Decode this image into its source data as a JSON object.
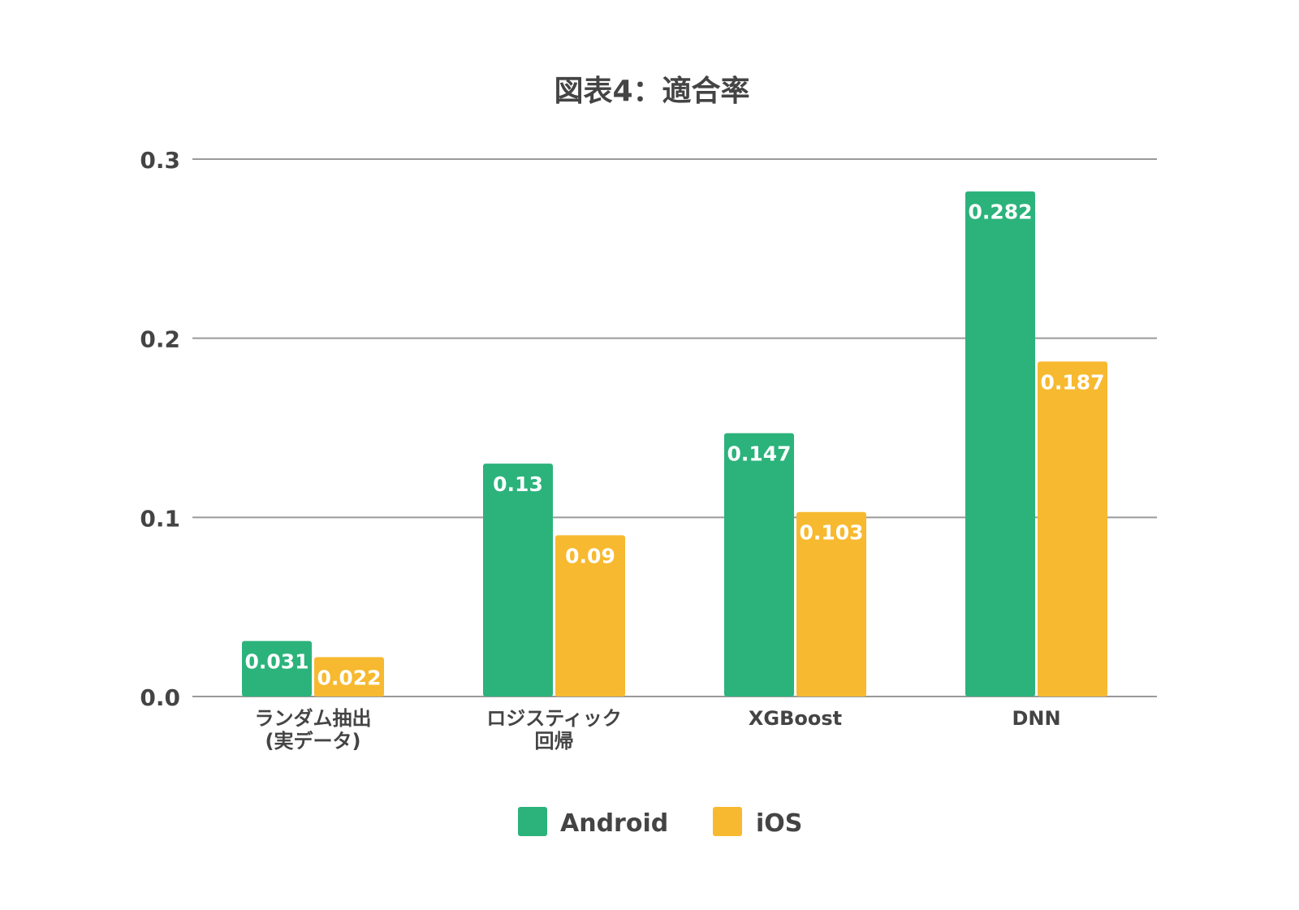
{
  "chart_data": {
    "type": "bar",
    "title": "図表4：適合率",
    "categories": [
      [
        "ランダム抽出",
        "(実データ)"
      ],
      [
        "ロジスティック",
        "回帰"
      ],
      [
        "XGBoost"
      ],
      [
        "DNN"
      ]
    ],
    "series": [
      {
        "name": "Android",
        "color": "#2bb37b",
        "values": [
          0.031,
          0.13,
          0.147,
          0.282
        ]
      },
      {
        "name": "iOS",
        "color": "#f7b92f",
        "values": [
          0.022,
          0.09,
          0.103,
          0.187
        ]
      }
    ],
    "ylim": [
      0,
      0.3
    ],
    "yticks": [
      "0.0",
      "0.1",
      "0.2",
      "0.3"
    ],
    "ytick_values": [
      0,
      0.1,
      0.2,
      0.3
    ],
    "grid": true,
    "legend": "bottom",
    "xlabel": "",
    "ylabel": ""
  }
}
